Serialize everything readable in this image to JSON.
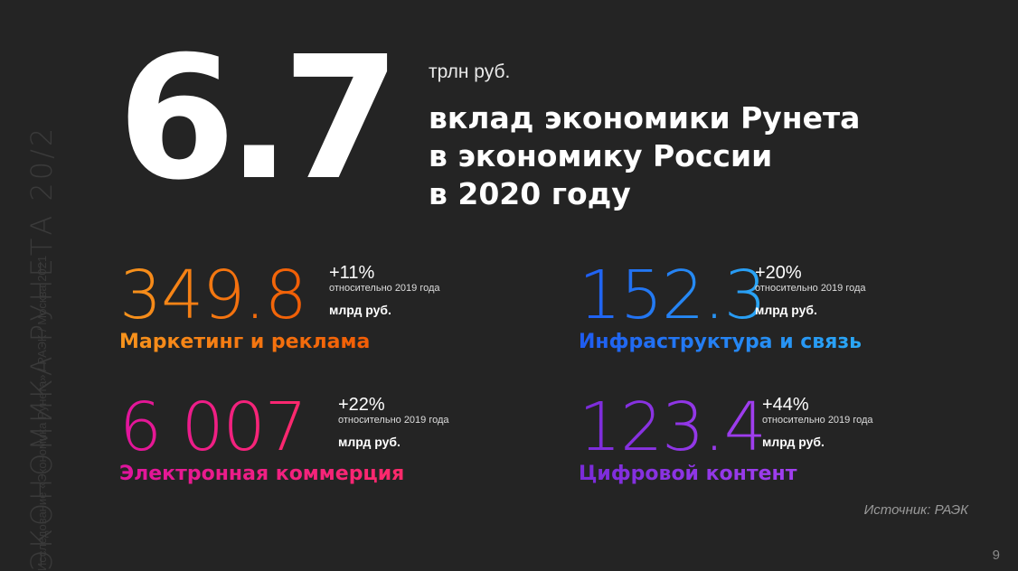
{
  "sidebar": {
    "title": "ЭКОНОМИКА РУНЕТА 20/2",
    "subtitle": "Исследование «Экономика Рунета» / РАЭК / Москва 2021"
  },
  "hero": {
    "value": "6.7",
    "unit": "трлн руб.",
    "description": [
      "вклад экономики Рунета",
      "в экономику России",
      "в 2020 году"
    ]
  },
  "metrics": [
    {
      "value": "349.8",
      "change": "+11%",
      "relative": "относительно 2019 года",
      "unit": "млрд руб.",
      "label": "Маркетинг и реклама",
      "color": "#f5821f"
    },
    {
      "value": "152.3",
      "change": "+20%",
      "relative": "относительно 2019 года",
      "unit": "млрд руб.",
      "label": "Инфраструктура и связь",
      "color": "#1f6ef5"
    },
    {
      "value": "6 007",
      "change": "+22%",
      "relative": "относительно 2019 года",
      "unit": "млрд руб.",
      "label": "Электронная коммерция",
      "color": "#f01a8c"
    },
    {
      "value": "123.4",
      "change": "+44%",
      "relative": "относительно 2019 года",
      "unit": "млрд руб.",
      "label": "Цифровой контент",
      "color": "#8a32e6"
    }
  ],
  "footer": {
    "source": "Источник: РАЭК",
    "page": "9"
  }
}
